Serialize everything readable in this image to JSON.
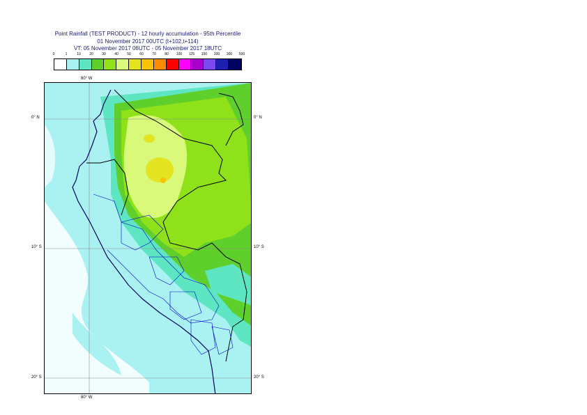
{
  "title": {
    "line1": "Point Rainfall (TEST PRODUCT) - 12 hourly accumulation - 95th Percentile",
    "line2": "01 November 2017 00UTC (t+102,t+114)",
    "line3": "VT: 05 November 2017 06UTC - 05 November 2017 18UTC"
  },
  "legend": {
    "thresholds": [
      "0",
      "1",
      "10",
      "20",
      "30",
      "40",
      "50",
      "60",
      "70",
      "80",
      "100",
      "125",
      "150",
      "200",
      "300",
      "500"
    ],
    "colors": [
      "#ffffff",
      "#aaf2f2",
      "#5ee6c3",
      "#5fcf2c",
      "#8fe21a",
      "#d9f97a",
      "#e3e322",
      "#f7c200",
      "#ff8c00",
      "#ff0000",
      "#ff00ff",
      "#aa00cc",
      "#7b49f0",
      "#2020b0",
      "#000060"
    ]
  },
  "axes": {
    "lon_top": "80° W",
    "lon_bottom": "80° W",
    "lat_0_left": "0° N",
    "lat_0_right": "0° N",
    "lat_10_left": "10° S",
    "lat_10_right": "10° S",
    "lat_20_left": "20° S",
    "lat_20_right": "20° S"
  }
}
